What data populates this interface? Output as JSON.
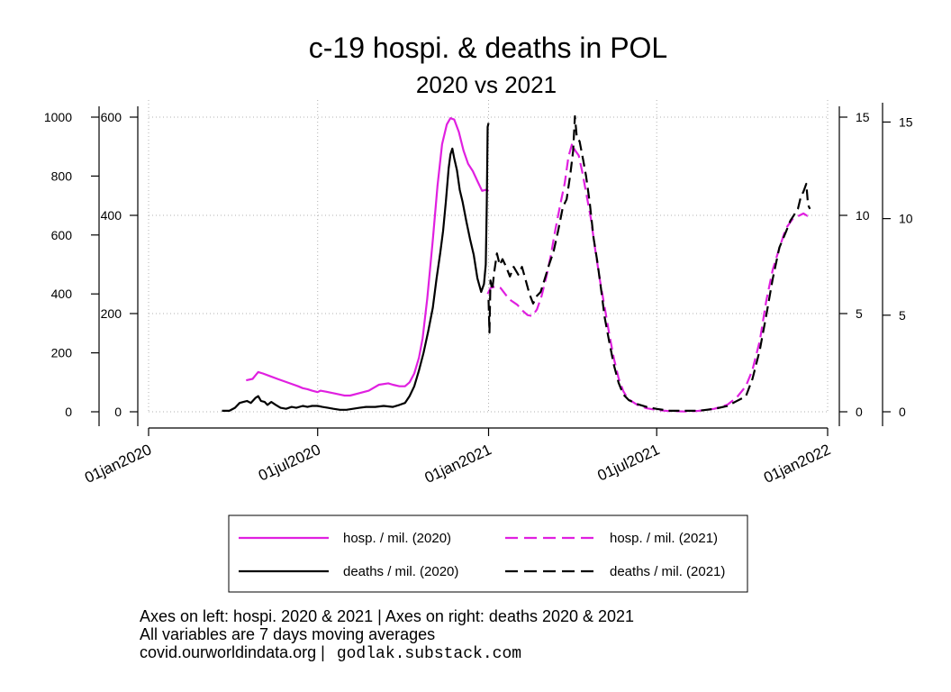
{
  "chart_data": {
    "type": "line",
    "title": "c-19 hospi. & deaths in POL",
    "subtitle": "2020 vs 2021",
    "colors": {
      "hosp": "#e020e0",
      "deaths": "#000000",
      "grid": "#b0b0b0"
    },
    "axes": {
      "x": {
        "min": "2020-01-01",
        "max": "2022-01-01",
        "ticks": [
          {
            "date": "2020-01-01",
            "label": "01jan2020"
          },
          {
            "date": "2020-07-01",
            "label": "01jul2020"
          },
          {
            "date": "2021-01-01",
            "label": "01jan2021"
          },
          {
            "date": "2021-07-01",
            "label": "01jul2021"
          },
          {
            "date": "2022-01-01",
            "label": "01jan2022"
          }
        ]
      },
      "left_outer": {
        "min": 0,
        "max": 1000,
        "ticks": [
          "0",
          "200",
          "400",
          "600",
          "800",
          "1000"
        ],
        "scale": "hosp. / mil. (2021)"
      },
      "left_inner": {
        "min": 0,
        "max": 600,
        "ticks": [
          "0",
          "200",
          "400",
          "600"
        ],
        "scale": "hosp. / mil. (2020)"
      },
      "right_inner": {
        "min": 0,
        "max": 15,
        "ticks": [
          "0",
          "5",
          "10",
          "15"
        ],
        "scale": "deaths / mil. (2020)"
      },
      "right_outer": {
        "min": 0,
        "max": 16,
        "ticks": [
          "0",
          "5",
          "10",
          "15"
        ],
        "scale": "deaths / mil. (2021)"
      }
    },
    "grid": true,
    "legend_position": "bottom",
    "series": [
      {
        "name": "hosp. / mil. (2020)",
        "style": "solid",
        "color": "#e020e0",
        "axis": "left_inner",
        "points": [
          [
            "2020-04-15",
            64
          ],
          [
            "2020-04-22",
            67
          ],
          [
            "2020-04-25",
            74
          ],
          [
            "2020-04-28",
            81
          ],
          [
            "2020-05-03",
            78
          ],
          [
            "2020-05-10",
            73
          ],
          [
            "2020-05-20",
            66
          ],
          [
            "2020-06-01",
            58
          ],
          [
            "2020-06-10",
            52
          ],
          [
            "2020-06-15",
            48
          ],
          [
            "2020-06-20",
            46
          ],
          [
            "2020-06-25",
            43
          ],
          [
            "2020-07-01",
            40
          ],
          [
            "2020-07-04",
            43
          ],
          [
            "2020-07-10",
            41
          ],
          [
            "2020-07-20",
            37
          ],
          [
            "2020-07-30",
            33
          ],
          [
            "2020-08-05",
            33
          ],
          [
            "2020-08-15",
            38
          ],
          [
            "2020-08-25",
            43
          ],
          [
            "2020-09-05",
            55
          ],
          [
            "2020-09-15",
            58
          ],
          [
            "2020-09-20",
            55
          ],
          [
            "2020-09-27",
            52
          ],
          [
            "2020-10-03",
            52
          ],
          [
            "2020-10-08",
            60
          ],
          [
            "2020-10-13",
            78
          ],
          [
            "2020-10-18",
            110
          ],
          [
            "2020-10-22",
            150
          ],
          [
            "2020-10-27",
            230
          ],
          [
            "2020-11-02",
            350
          ],
          [
            "2020-11-07",
            460
          ],
          [
            "2020-11-12",
            545
          ],
          [
            "2020-11-17",
            585
          ],
          [
            "2020-11-21",
            598
          ],
          [
            "2020-11-25",
            595
          ],
          [
            "2020-11-30",
            570
          ],
          [
            "2020-12-05",
            532
          ],
          [
            "2020-12-10",
            505
          ],
          [
            "2020-12-15",
            490
          ],
          [
            "2020-12-20",
            470
          ],
          [
            "2020-12-25",
            450
          ],
          [
            "2020-12-29",
            452
          ],
          [
            "2021-01-01",
            450
          ]
        ]
      },
      {
        "name": "deaths / mil. (2020)",
        "style": "solid",
        "color": "#000000",
        "axis": "right_inner",
        "points": [
          [
            "2020-03-20",
            0.05
          ],
          [
            "2020-03-28",
            0.05
          ],
          [
            "2020-04-03",
            0.2
          ],
          [
            "2020-04-08",
            0.45
          ],
          [
            "2020-04-12",
            0.5
          ],
          [
            "2020-04-16",
            0.55
          ],
          [
            "2020-04-20",
            0.45
          ],
          [
            "2020-04-25",
            0.7
          ],
          [
            "2020-04-28",
            0.8
          ],
          [
            "2020-05-01",
            0.55
          ],
          [
            "2020-05-05",
            0.5
          ],
          [
            "2020-05-08",
            0.35
          ],
          [
            "2020-05-12",
            0.5
          ],
          [
            "2020-05-17",
            0.35
          ],
          [
            "2020-05-22",
            0.2
          ],
          [
            "2020-05-28",
            0.15
          ],
          [
            "2020-06-03",
            0.25
          ],
          [
            "2020-06-08",
            0.2
          ],
          [
            "2020-06-15",
            0.3
          ],
          [
            "2020-06-20",
            0.25
          ],
          [
            "2020-06-25",
            0.3
          ],
          [
            "2020-07-01",
            0.3
          ],
          [
            "2020-07-06",
            0.25
          ],
          [
            "2020-07-12",
            0.2
          ],
          [
            "2020-07-18",
            0.15
          ],
          [
            "2020-07-25",
            0.1
          ],
          [
            "2020-08-01",
            0.1
          ],
          [
            "2020-08-08",
            0.15
          ],
          [
            "2020-08-15",
            0.2
          ],
          [
            "2020-08-22",
            0.25
          ],
          [
            "2020-09-01",
            0.25
          ],
          [
            "2020-09-10",
            0.3
          ],
          [
            "2020-09-20",
            0.25
          ],
          [
            "2020-09-27",
            0.35
          ],
          [
            "2020-10-03",
            0.45
          ],
          [
            "2020-10-08",
            0.8
          ],
          [
            "2020-10-13",
            1.3
          ],
          [
            "2020-10-18",
            2.1
          ],
          [
            "2020-10-23",
            3.0
          ],
          [
            "2020-10-28",
            4.1
          ],
          [
            "2020-11-02",
            5.3
          ],
          [
            "2020-11-06",
            6.8
          ],
          [
            "2020-11-10",
            8.1
          ],
          [
            "2020-11-13",
            9.2
          ],
          [
            "2020-11-16",
            10.7
          ],
          [
            "2020-11-19",
            12.4
          ],
          [
            "2020-11-21",
            13.1
          ],
          [
            "2020-11-23",
            13.4
          ],
          [
            "2020-11-25",
            12.9
          ],
          [
            "2020-11-28",
            12.3
          ],
          [
            "2020-12-01",
            11.3
          ],
          [
            "2020-12-04",
            10.7
          ],
          [
            "2020-12-08",
            9.7
          ],
          [
            "2020-12-12",
            8.8
          ],
          [
            "2020-12-16",
            8.0
          ],
          [
            "2020-12-20",
            6.8
          ],
          [
            "2020-12-24",
            6.1
          ],
          [
            "2020-12-27",
            6.5
          ],
          [
            "2020-12-29",
            7.5
          ],
          [
            "2020-12-30",
            10.5
          ],
          [
            "2020-12-31",
            14.5
          ],
          [
            "2021-01-01",
            14.7
          ]
        ]
      },
      {
        "name": "hosp. / mil. (2021)",
        "style": "dashed",
        "color": "#e020e0",
        "axis": "left_outer",
        "points": [
          [
            "2020-12-31",
            400
          ],
          [
            "2021-01-03",
            420
          ],
          [
            "2021-01-08",
            425
          ],
          [
            "2021-01-14",
            420
          ],
          [
            "2021-01-20",
            395
          ],
          [
            "2021-01-25",
            378
          ],
          [
            "2021-02-01",
            363
          ],
          [
            "2021-02-07",
            342
          ],
          [
            "2021-02-12",
            328
          ],
          [
            "2021-02-17",
            325
          ],
          [
            "2021-02-22",
            347
          ],
          [
            "2021-02-27",
            392
          ],
          [
            "2021-03-04",
            456
          ],
          [
            "2021-03-09",
            530
          ],
          [
            "2021-03-14",
            620
          ],
          [
            "2021-03-19",
            700
          ],
          [
            "2021-03-24",
            776
          ],
          [
            "2021-03-28",
            865
          ],
          [
            "2021-04-01",
            910
          ],
          [
            "2021-04-04",
            888
          ],
          [
            "2021-04-08",
            870
          ],
          [
            "2021-04-12",
            812
          ],
          [
            "2021-04-16",
            744
          ],
          [
            "2021-04-21",
            658
          ],
          [
            "2021-04-26",
            547
          ],
          [
            "2021-05-01",
            444
          ],
          [
            "2021-05-06",
            355
          ],
          [
            "2021-05-11",
            262
          ],
          [
            "2021-05-16",
            179
          ],
          [
            "2021-05-21",
            114
          ],
          [
            "2021-05-26",
            70
          ],
          [
            "2021-05-31",
            44
          ],
          [
            "2021-06-10",
            24
          ],
          [
            "2021-06-20",
            12
          ],
          [
            "2021-07-01",
            6
          ],
          [
            "2021-07-15",
            2
          ],
          [
            "2021-08-01",
            1
          ],
          [
            "2021-08-15",
            3
          ],
          [
            "2021-09-01",
            10
          ],
          [
            "2021-09-15",
            24
          ],
          [
            "2021-09-25",
            48
          ],
          [
            "2021-10-05",
            87
          ],
          [
            "2021-10-12",
            142
          ],
          [
            "2021-10-20",
            241
          ],
          [
            "2021-10-27",
            377
          ],
          [
            "2021-11-03",
            483
          ],
          [
            "2021-11-10",
            555
          ],
          [
            "2021-11-17",
            622
          ],
          [
            "2021-11-24",
            653
          ],
          [
            "2021-12-01",
            665
          ],
          [
            "2021-12-06",
            673
          ],
          [
            "2021-12-10",
            665
          ],
          [
            "2021-12-13",
            676
          ]
        ]
      },
      {
        "name": "deaths / mil. (2021)",
        "style": "dashed",
        "color": "#000000",
        "axis": "right_outer",
        "points": [
          [
            "2021-01-01",
            5.8
          ],
          [
            "2021-01-02",
            4.1
          ],
          [
            "2021-01-03",
            6.8
          ],
          [
            "2021-01-05",
            6.3
          ],
          [
            "2021-01-07",
            7.2
          ],
          [
            "2021-01-10",
            8.2
          ],
          [
            "2021-01-13",
            7.6
          ],
          [
            "2021-01-16",
            7.9
          ],
          [
            "2021-01-20",
            7.5
          ],
          [
            "2021-01-24",
            7.0
          ],
          [
            "2021-01-28",
            7.5
          ],
          [
            "2021-02-02",
            7.1
          ],
          [
            "2021-02-06",
            7.5
          ],
          [
            "2021-02-10",
            6.8
          ],
          [
            "2021-02-14",
            6.1
          ],
          [
            "2021-02-18",
            5.6
          ],
          [
            "2021-02-22",
            6.0
          ],
          [
            "2021-02-26",
            6.2
          ],
          [
            "2021-03-02",
            6.8
          ],
          [
            "2021-03-07",
            7.6
          ],
          [
            "2021-03-12",
            8.3
          ],
          [
            "2021-03-17",
            9.4
          ],
          [
            "2021-03-22",
            10.6
          ],
          [
            "2021-03-26",
            11.0
          ],
          [
            "2021-03-30",
            12.3
          ],
          [
            "2021-04-02",
            13.5
          ],
          [
            "2021-04-04",
            15.3
          ],
          [
            "2021-04-06",
            14.2
          ],
          [
            "2021-04-09",
            14.0
          ],
          [
            "2021-04-13",
            13.0
          ],
          [
            "2021-04-16",
            12.2
          ],
          [
            "2021-04-20",
            10.8
          ],
          [
            "2021-04-24",
            9.0
          ],
          [
            "2021-04-28",
            7.8
          ],
          [
            "2021-05-02",
            6.4
          ],
          [
            "2021-05-06",
            4.9
          ],
          [
            "2021-05-11",
            3.6
          ],
          [
            "2021-05-16",
            2.4
          ],
          [
            "2021-05-21",
            1.5
          ],
          [
            "2021-05-26",
            0.9
          ],
          [
            "2021-06-01",
            0.6
          ],
          [
            "2021-06-10",
            0.4
          ],
          [
            "2021-06-20",
            0.25
          ],
          [
            "2021-07-01",
            0.15
          ],
          [
            "2021-07-15",
            0.05
          ],
          [
            "2021-08-01",
            0.05
          ],
          [
            "2021-08-15",
            0.05
          ],
          [
            "2021-09-01",
            0.15
          ],
          [
            "2021-09-15",
            0.3
          ],
          [
            "2021-09-25",
            0.55
          ],
          [
            "2021-10-05",
            0.8
          ],
          [
            "2021-10-12",
            1.7
          ],
          [
            "2021-10-20",
            3.2
          ],
          [
            "2021-10-27",
            5.0
          ],
          [
            "2021-11-03",
            6.9
          ],
          [
            "2021-11-10",
            8.5
          ],
          [
            "2021-11-17",
            9.3
          ],
          [
            "2021-11-22",
            9.9
          ],
          [
            "2021-11-26",
            10.2
          ],
          [
            "2021-11-30",
            10.5
          ],
          [
            "2021-12-03",
            11.1
          ],
          [
            "2021-12-06",
            11.4
          ],
          [
            "2021-12-09",
            11.8
          ],
          [
            "2021-12-11",
            10.7
          ],
          [
            "2021-12-13",
            10.5
          ]
        ]
      }
    ]
  },
  "notes": {
    "line1": "Axes on left: hospi. 2020 & 2021 | Axes on right: deaths 2020 & 2021",
    "line2": "All variables are 7 days moving averages",
    "line3_source": "covid.ourworldindata.org |",
    "line3_site": "godlak.substack.com"
  }
}
